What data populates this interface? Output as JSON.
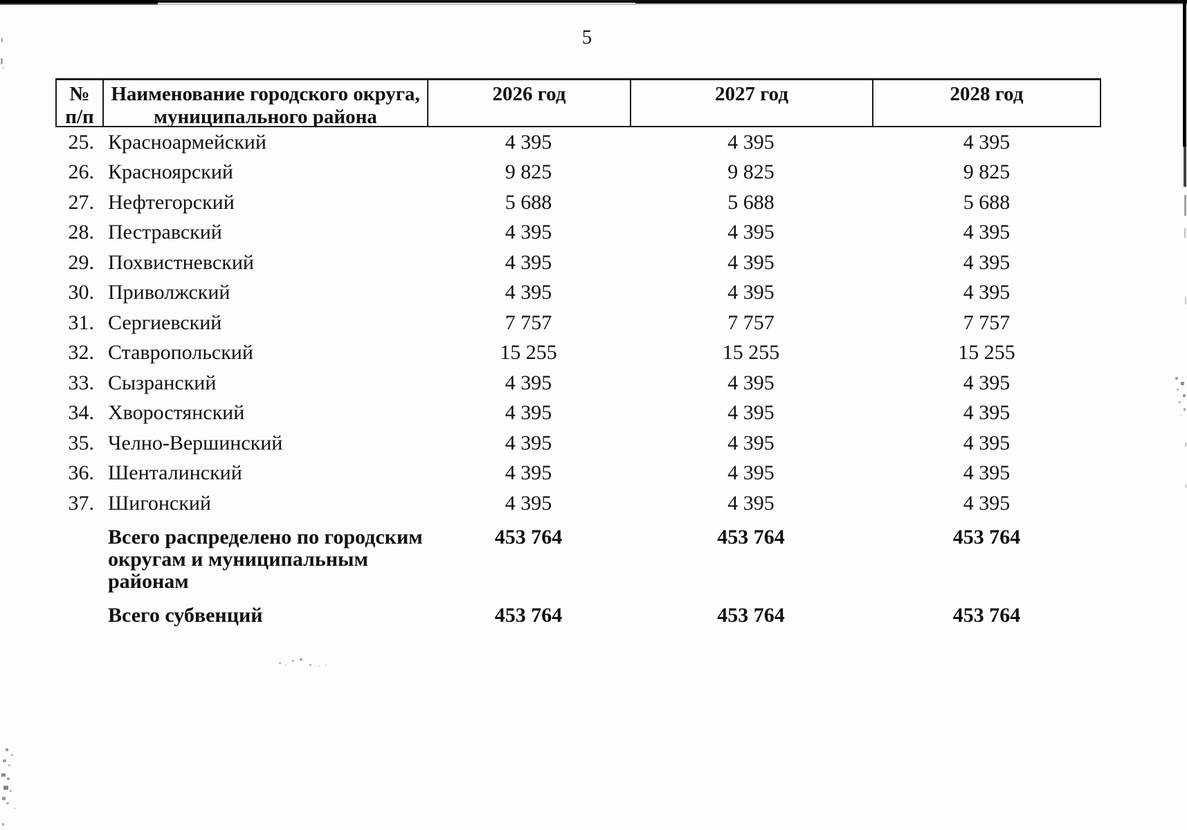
{
  "page": {
    "number": "5"
  },
  "table": {
    "header": {
      "num_line1": "№",
      "num_line2": "п/п",
      "name_line1": "Наименование городского округа,",
      "name_line2": "муниципального района",
      "year_2026": "2026 год",
      "year_2027": "2027 год",
      "year_2028": "2028 год"
    },
    "rows": [
      {
        "num": "25.",
        "name": "Красноармейский",
        "y2026": "4 395",
        "y2027": "4 395",
        "y2028": "4 395"
      },
      {
        "num": "26.",
        "name": "Красноярский",
        "y2026": "9 825",
        "y2027": "9 825",
        "y2028": "9 825"
      },
      {
        "num": "27.",
        "name": "Нефтегорский",
        "y2026": "5 688",
        "y2027": "5 688",
        "y2028": "5 688"
      },
      {
        "num": "28.",
        "name": "Пестравский",
        "y2026": "4 395",
        "y2027": "4 395",
        "y2028": "4 395"
      },
      {
        "num": "29.",
        "name": "Похвистневский",
        "y2026": "4 395",
        "y2027": "4 395",
        "y2028": "4 395"
      },
      {
        "num": "30.",
        "name": "Приволжский",
        "y2026": "4 395",
        "y2027": "4 395",
        "y2028": "4 395"
      },
      {
        "num": "31.",
        "name": "Сергиевский",
        "y2026": "7 757",
        "y2027": "7 757",
        "y2028": "7 757"
      },
      {
        "num": "32.",
        "name": "Ставропольский",
        "y2026": "15 255",
        "y2027": "15 255",
        "y2028": "15 255"
      },
      {
        "num": "33.",
        "name": "Сызранский",
        "y2026": "4 395",
        "y2027": "4 395",
        "y2028": "4 395"
      },
      {
        "num": "34.",
        "name": "Хворостянский",
        "y2026": "4 395",
        "y2027": "4 395",
        "y2028": "4 395"
      },
      {
        "num": "35.",
        "name": "Челно-Вершинский",
        "y2026": "4 395",
        "y2027": "4 395",
        "y2028": "4 395"
      },
      {
        "num": "36.",
        "name": "Шенталинский",
        "y2026": "4 395",
        "y2027": "4 395",
        "y2028": "4 395"
      },
      {
        "num": "37.",
        "name": "Шигонский",
        "y2026": "4 395",
        "y2027": "4 395",
        "y2028": "4 395"
      }
    ],
    "total_distributed": {
      "label_lines": [
        "Всего распределено по городским",
        "округам и муниципальным",
        "районам"
      ],
      "y2026": "453 764",
      "y2027": "453 764",
      "y2028": "453 764"
    },
    "total_subventions": {
      "label": "Всего субвенций",
      "y2026": "453 764",
      "y2027": "453 764",
      "y2028": "453 764"
    }
  }
}
